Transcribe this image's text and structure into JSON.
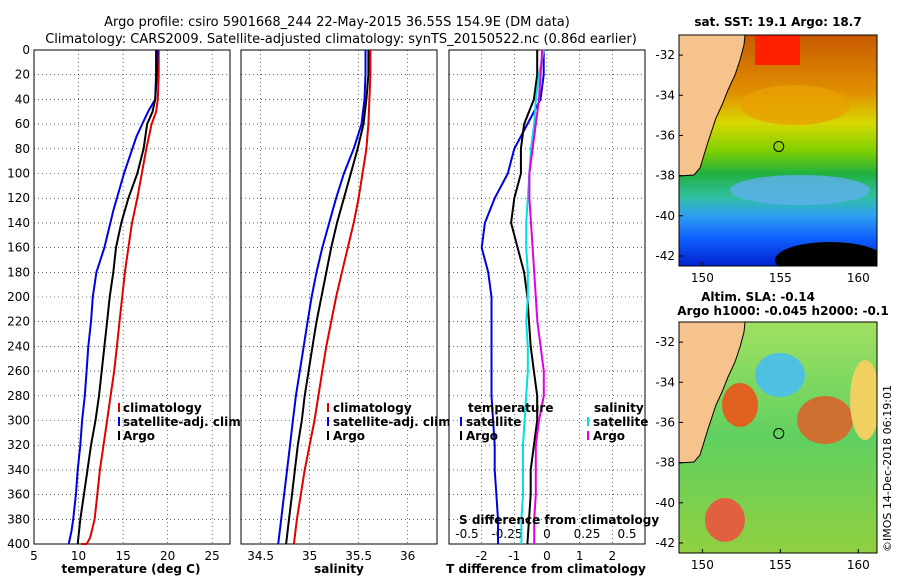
{
  "title_line1": "Argo profile: csiro 5901668_244 22-May-2015 36.55S 154.9E (DM data)",
  "title_line2": "Climatology: CARS2009. Satellite-adjusted climatology: synTS_20150522.nc (0.86d earlier)",
  "map_sst_title": "sat. SST: 19.1 Argo: 18.7",
  "map_sla_title1": "Altim. SLA: -0.14",
  "map_sla_title2": "Argo h1000: -0.045 h2000: -0.1",
  "credit": "©IMOS 14-Dec-2018 06:19:01",
  "colors": {
    "climatology": "#e00000",
    "satellite": "#0000e0",
    "argo": "#000000",
    "sat_salinity": "#00e0e0",
    "argo_salinity": "#e000e0",
    "land": "#f7c38d"
  },
  "chart_data": [
    {
      "type": "line",
      "id": "temperature",
      "xlabel": "temperature (deg C)",
      "ylabel": "",
      "xlim": [
        5,
        27
      ],
      "ylim": [
        400,
        0
      ],
      "xticks": [
        5,
        10,
        15,
        20,
        25
      ],
      "yticks": [
        0,
        20,
        40,
        60,
        80,
        100,
        120,
        140,
        160,
        180,
        200,
        220,
        240,
        260,
        280,
        300,
        320,
        340,
        360,
        380,
        400
      ],
      "legend": [
        "climatology",
        "satellite-adj. clim.",
        "Argo"
      ],
      "legend_position": "bottom-right",
      "series": [
        {
          "name": "climatology",
          "color": "#e00000",
          "x": [
            19.0,
            19.0,
            18.9,
            18.7,
            18.2,
            17.6,
            17.1,
            16.6,
            16.0,
            15.6,
            15.2,
            14.9,
            14.6,
            14.3,
            14.0,
            13.6,
            13.2,
            12.8,
            12.4,
            12.1,
            11.8,
            11.3,
            10.9,
            10.6,
            10.3
          ],
          "depth": [
            0,
            20,
            40,
            50,
            60,
            80,
            100,
            120,
            140,
            160,
            180,
            200,
            220,
            240,
            260,
            280,
            300,
            320,
            340,
            360,
            380,
            395,
            400,
            400,
            400
          ]
        },
        {
          "name": "satellite-adj. clim.",
          "color": "#0000e0",
          "x": [
            18.9,
            18.8,
            18.6,
            17.8,
            16.5,
            15.1,
            13.9,
            12.9,
            12.0,
            11.6,
            11.4,
            11.1,
            10.9,
            10.7,
            10.4,
            10.2,
            9.9,
            9.7,
            9.4,
            9.2,
            8.9
          ],
          "depth": [
            0,
            20,
            40,
            50,
            70,
            100,
            130,
            160,
            180,
            200,
            220,
            240,
            260,
            280,
            300,
            320,
            340,
            360,
            380,
            390,
            400
          ]
        },
        {
          "name": "Argo",
          "color": "#000000",
          "x": [
            18.7,
            18.7,
            18.6,
            18.3,
            17.7,
            17.3,
            16.6,
            15.6,
            14.8,
            14.2,
            13.9,
            13.5,
            13.2,
            12.9,
            12.6,
            12.3,
            11.9,
            11.4,
            11.0,
            10.6,
            10.2,
            9.9
          ],
          "depth": [
            0,
            20,
            40,
            50,
            60,
            80,
            100,
            120,
            140,
            160,
            180,
            200,
            220,
            240,
            260,
            280,
            300,
            320,
            340,
            360,
            380,
            400
          ]
        }
      ]
    },
    {
      "type": "line",
      "id": "salinity",
      "xlabel": "salinity",
      "ylabel": "",
      "xlim": [
        34.3,
        36.3
      ],
      "ylim": [
        400,
        0
      ],
      "xticks": [
        34.5,
        35,
        35.5,
        36
      ],
      "xtick_labels": [
        "34.5",
        "35",
        "35.5",
        "36"
      ],
      "legend": [
        "climatology",
        "satellite-adj. clim.",
        "Argo"
      ],
      "legend_position": "bottom-right",
      "series": [
        {
          "name": "climatology",
          "color": "#e00000",
          "x": [
            35.62,
            35.62,
            35.61,
            35.6,
            35.58,
            35.54,
            35.5,
            35.45,
            35.39,
            35.33,
            35.27,
            35.22,
            35.17,
            35.13,
            35.09,
            35.05,
            35.0,
            34.95,
            34.91,
            34.87,
            34.84
          ],
          "depth": [
            0,
            20,
            40,
            60,
            80,
            100,
            120,
            140,
            160,
            180,
            200,
            220,
            240,
            260,
            280,
            300,
            320,
            340,
            360,
            380,
            400
          ]
        },
        {
          "name": "satellite-adj. clim.",
          "color": "#0000e0",
          "x": [
            35.57,
            35.57,
            35.56,
            35.53,
            35.45,
            35.35,
            35.27,
            35.2,
            35.13,
            35.07,
            35.02,
            34.98,
            34.94,
            34.9,
            34.86,
            34.83,
            34.8,
            34.77,
            34.74,
            34.71,
            34.68
          ],
          "depth": [
            0,
            20,
            40,
            60,
            80,
            100,
            120,
            140,
            160,
            180,
            200,
            220,
            240,
            260,
            280,
            300,
            320,
            340,
            360,
            380,
            400
          ]
        },
        {
          "name": "Argo",
          "color": "#000000",
          "x": [
            35.6,
            35.6,
            35.58,
            35.55,
            35.49,
            35.42,
            35.35,
            35.28,
            35.22,
            35.17,
            35.12,
            35.07,
            35.03,
            34.99,
            34.95,
            34.92,
            34.88,
            34.85,
            34.82,
            34.79,
            34.76
          ],
          "depth": [
            0,
            20,
            40,
            60,
            80,
            100,
            120,
            140,
            160,
            180,
            200,
            220,
            240,
            260,
            280,
            300,
            320,
            340,
            360,
            380,
            400
          ]
        }
      ]
    },
    {
      "type": "line",
      "id": "difference",
      "xlabel": "T difference from climatology",
      "xlabel_top": "S difference from climatology",
      "xlim": [
        -3,
        3
      ],
      "ylim": [
        400,
        0
      ],
      "xticks": [
        -2,
        -1,
        0,
        1,
        2
      ],
      "xticks_top": [
        -0.5,
        -0.25,
        0,
        0.25,
        0.5
      ],
      "xticks_top_labels": [
        "-0.5",
        "-0.25",
        "0",
        "0.25",
        "0.5"
      ],
      "legend": {
        "temperature_heading": "temperature",
        "salinity_heading": "salinity",
        "satellite": "satellite",
        "argo": "Argo"
      },
      "series": [
        {
          "name": "temperature satellite",
          "color": "#0000e0",
          "x": [
            -0.1,
            -0.1,
            -0.2,
            -0.6,
            -1.0,
            -1.2,
            -1.6,
            -1.9,
            -2.0,
            -1.8,
            -1.7,
            -1.7,
            -1.7,
            -1.7,
            -1.7,
            -1.65,
            -1.6,
            -1.6,
            -1.55,
            -1.5,
            -1.5
          ],
          "depth": [
            0,
            20,
            40,
            60,
            80,
            100,
            120,
            140,
            160,
            180,
            200,
            220,
            240,
            260,
            280,
            300,
            320,
            340,
            360,
            380,
            400
          ]
        },
        {
          "name": "temperature Argo",
          "color": "#000000",
          "x": [
            -0.3,
            -0.3,
            -0.4,
            -0.7,
            -0.8,
            -0.8,
            -1.0,
            -1.1,
            -0.9,
            -0.7,
            -0.6,
            -0.55,
            -0.5,
            -0.4,
            -0.3,
            -0.3,
            -0.4,
            -0.5,
            -0.5,
            -0.55,
            -0.6
          ],
          "depth": [
            0,
            20,
            40,
            60,
            80,
            100,
            120,
            140,
            160,
            180,
            200,
            220,
            240,
            260,
            280,
            300,
            320,
            340,
            360,
            380,
            400
          ]
        },
        {
          "name": "salinity satellite",
          "color": "#00e0e0",
          "x": [
            -0.02,
            -0.05,
            -0.07,
            -0.08,
            -0.1,
            -0.11,
            -0.12,
            -0.13,
            -0.13,
            -0.12,
            -0.12,
            -0.13,
            -0.12,
            -0.12,
            -0.13,
            -0.14,
            -0.15,
            -0.15,
            -0.15,
            -0.16,
            -0.16
          ],
          "depth": [
            0,
            20,
            40,
            60,
            80,
            100,
            120,
            140,
            160,
            180,
            200,
            220,
            240,
            260,
            280,
            300,
            320,
            340,
            360,
            380,
            400
          ]
        },
        {
          "name": "salinity Argo",
          "color": "#e000e0",
          "x": [
            -0.03,
            -0.04,
            -0.05,
            -0.07,
            -0.09,
            -0.11,
            -0.11,
            -0.1,
            -0.09,
            -0.08,
            -0.07,
            -0.06,
            -0.04,
            -0.02,
            -0.02,
            -0.05,
            -0.07,
            -0.07,
            -0.07,
            -0.08,
            -0.08
          ],
          "depth": [
            0,
            20,
            40,
            60,
            80,
            100,
            120,
            140,
            160,
            180,
            200,
            220,
            240,
            260,
            280,
            300,
            320,
            340,
            360,
            380,
            400
          ]
        }
      ]
    },
    {
      "type": "heatmap",
      "id": "sst_map",
      "title": "sat. SST: 19.1 Argo: 18.7",
      "xlim": [
        148.5,
        161.2
      ],
      "ylim": [
        -42.5,
        -31.0
      ],
      "xticks": [
        150,
        155,
        160
      ],
      "yticks": [
        -32,
        -34,
        -36,
        -38,
        -40,
        -42
      ],
      "float_position": {
        "lon": 154.9,
        "lat": -36.55
      }
    },
    {
      "type": "heatmap",
      "id": "sla_map",
      "title": "Altim. SLA: -0.14",
      "subtitle": "Argo h1000: -0.045 h2000: -0.1",
      "xlim": [
        148.5,
        161.2
      ],
      "ylim": [
        -42.5,
        -31.0
      ],
      "xticks": [
        150,
        155,
        160
      ],
      "yticks": [
        -32,
        -34,
        -36,
        -38,
        -40,
        -42
      ],
      "float_position": {
        "lon": 154.9,
        "lat": -36.55
      }
    }
  ]
}
